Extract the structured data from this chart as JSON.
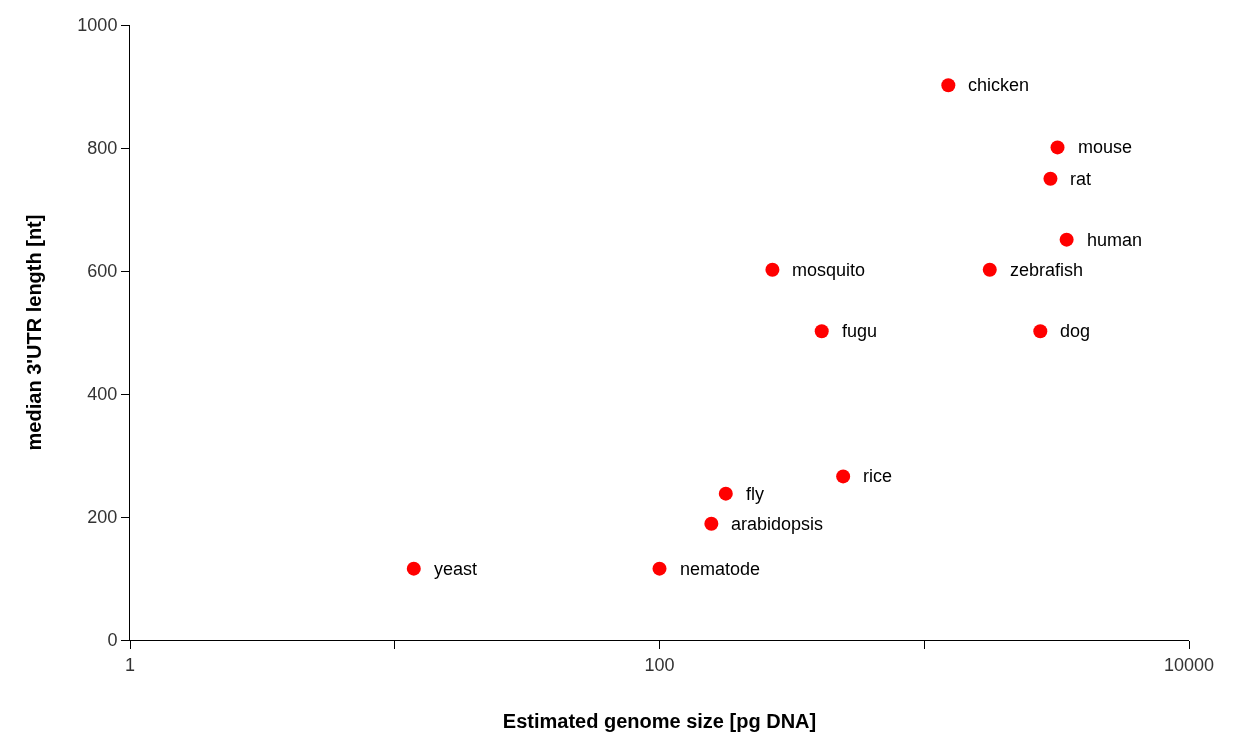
{
  "chart_data": {
    "type": "scatter",
    "xlabel": "Estimated genome size [pg DNA]",
    "ylabel": "median 3'UTR length [nt]",
    "x": [
      11.8,
      100,
      157,
      178,
      494,
      410,
      267,
      1233,
      1768,
      2744,
      3450,
      2997,
      3187
    ],
    "series": [
      {
        "color": "#ff0000",
        "values": [
          116,
          116,
          189,
          238,
          266,
          502,
          602,
          902,
          602,
          502,
          651,
          750,
          801
        ]
      }
    ],
    "annotations": [
      {
        "text": "yeast",
        "x": 11.8,
        "y": 116
      },
      {
        "text": "nematode",
        "x": 100,
        "y": 116
      },
      {
        "text": "arabidopsis",
        "x": 157,
        "y": 189
      },
      {
        "text": "fly",
        "x": 178,
        "y": 238
      },
      {
        "text": "rice",
        "x": 494,
        "y": 266
      },
      {
        "text": "fugu",
        "x": 410,
        "y": 502
      },
      {
        "text": "mosquito",
        "x": 267,
        "y": 602
      },
      {
        "text": "chicken",
        "x": 1233,
        "y": 902
      },
      {
        "text": "zebrafish",
        "x": 1768,
        "y": 602
      },
      {
        "text": "dog",
        "x": 2744,
        "y": 502
      },
      {
        "text": "human",
        "x": 3450,
        "y": 651
      },
      {
        "text": "rat",
        "x": 2997,
        "y": 750
      },
      {
        "text": "mouse",
        "x": 3187,
        "y": 801
      }
    ],
    "log": "x",
    "xlim": [
      1,
      10000
    ],
    "xticks": [
      1,
      {
        "value": 10,
        "label": null
      },
      100,
      {
        "value": 1000,
        "label": null
      },
      10000
    ],
    "ylim": [
      0,
      1000
    ],
    "yticks": [
      0,
      200,
      400,
      600,
      800,
      1000
    ],
    "marker": "circle"
  }
}
